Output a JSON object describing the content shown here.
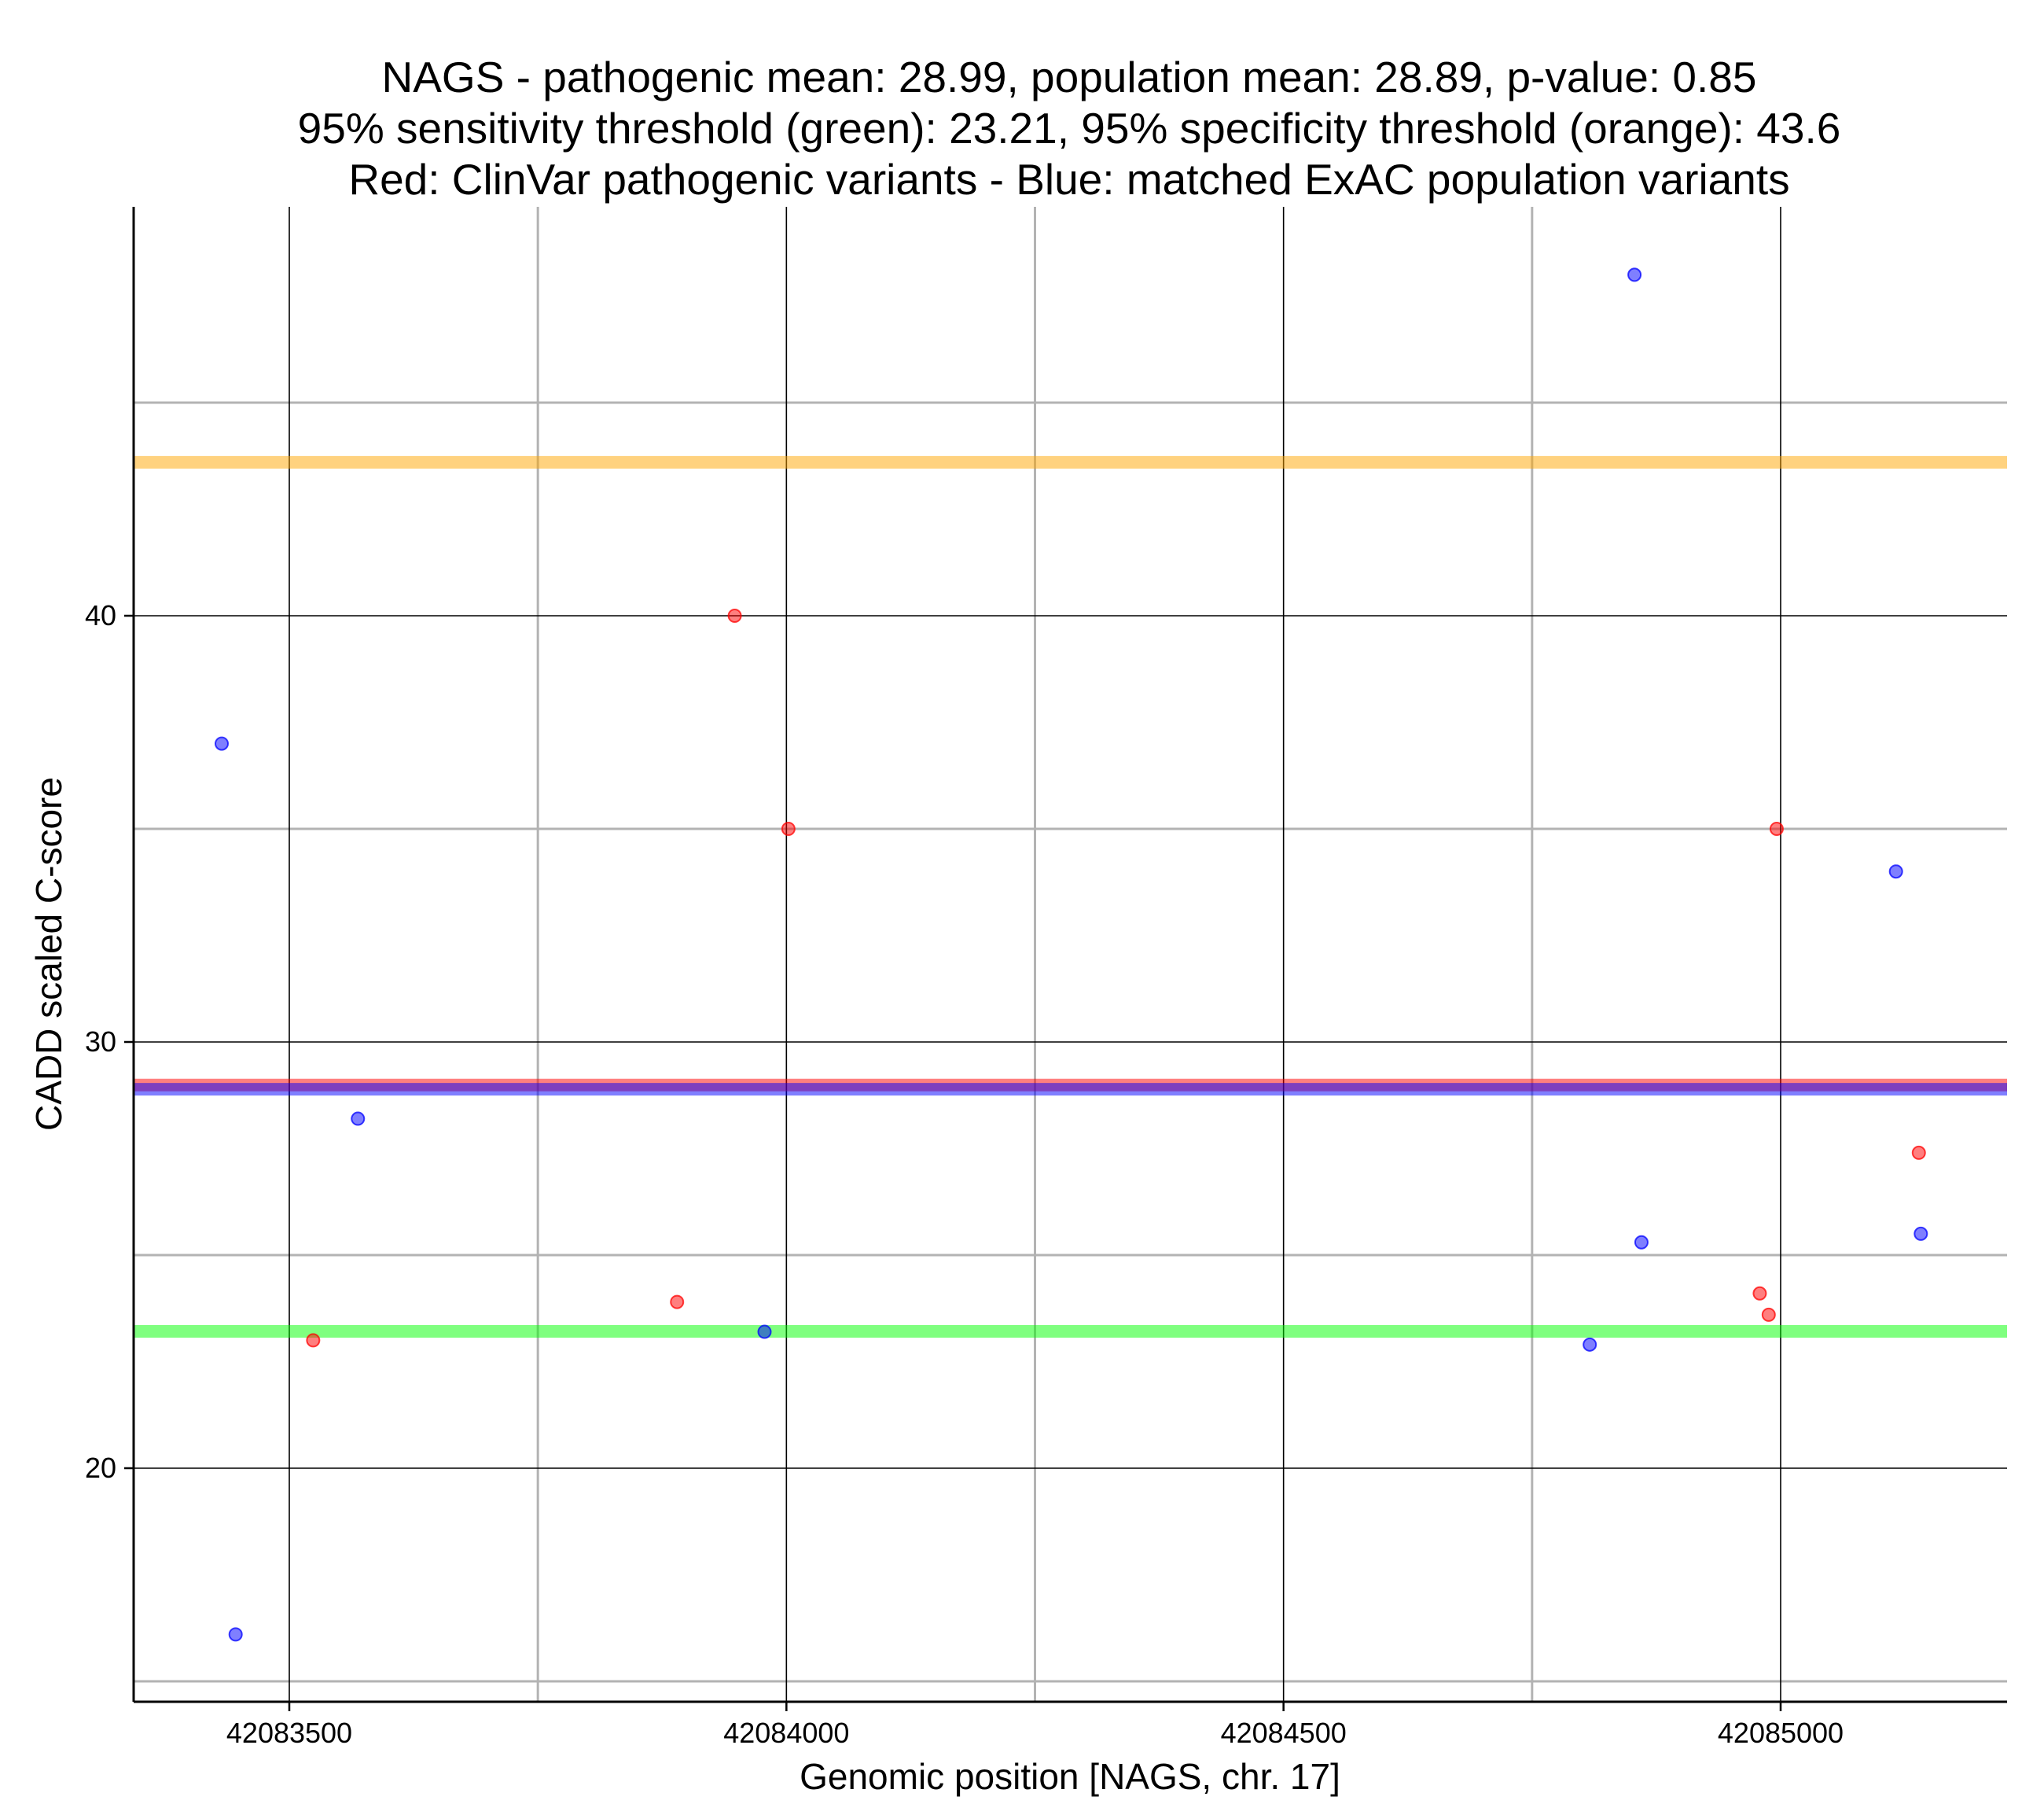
{
  "chart_data": {
    "type": "scatter",
    "title_lines": [
      "NAGS - pathogenic mean: 28.99, population mean: 28.89, p-value: 0.85",
      "95% sensitivity threshold (green): 23.21, 95% specificity threshold (orange): 43.6",
      "Red: ClinVar pathogenic variants - Blue: matched ExAC population variants"
    ],
    "xlabel": "Genomic position [NAGS, chr. 17]",
    "ylabel": "CADD scaled C-score",
    "xlim": [
      42083345,
      42085225
    ],
    "ylim": [
      14.5,
      49.6
    ],
    "x_major_ticks": [
      42083500,
      42084000,
      42084500,
      42085000
    ],
    "x_tick_labels": [
      "42083500",
      "42084000",
      "42084500",
      "42085000"
    ],
    "x_minor_gridlines": [
      42083750,
      42084250,
      42084750
    ],
    "y_major_ticks": [
      20,
      30,
      40
    ],
    "y_tick_labels": [
      "20",
      "30",
      "40"
    ],
    "y_minor_gridlines": [
      15,
      25,
      35,
      45
    ],
    "hlines": [
      {
        "name": "specificity-threshold",
        "y": 43.6,
        "color": "#ffa500"
      },
      {
        "name": "sensitivity-threshold",
        "y": 23.21,
        "color": "#00ff00"
      },
      {
        "name": "pathogenic-mean",
        "y": 28.99,
        "color": "#ff0000"
      },
      {
        "name": "population-mean",
        "y": 28.89,
        "color": "#0000ff"
      }
    ],
    "series": [
      {
        "name": "ClinVar pathogenic variants",
        "color": "#ff0000",
        "points": [
          {
            "x": 42083524,
            "y": 23.0
          },
          {
            "x": 42083890,
            "y": 23.9
          },
          {
            "x": 42083948,
            "y": 40.0
          },
          {
            "x": 42084002,
            "y": 35.0
          },
          {
            "x": 42084979,
            "y": 24.1
          },
          {
            "x": 42084988,
            "y": 23.6
          },
          {
            "x": 42084996,
            "y": 35.0
          },
          {
            "x": 42085139,
            "y": 27.4
          }
        ]
      },
      {
        "name": "matched ExAC population variants",
        "color": "#0000ff",
        "points": [
          {
            "x": 42083432,
            "y": 37.0
          },
          {
            "x": 42083446,
            "y": 16.1
          },
          {
            "x": 42083569,
            "y": 28.2
          },
          {
            "x": 42083978,
            "y": 23.2
          },
          {
            "x": 42084808,
            "y": 22.9
          },
          {
            "x": 42084853,
            "y": 48.0
          },
          {
            "x": 42084860,
            "y": 25.3
          },
          {
            "x": 42085116,
            "y": 34.0
          },
          {
            "x": 42085141,
            "y": 25.5
          }
        ]
      }
    ]
  }
}
